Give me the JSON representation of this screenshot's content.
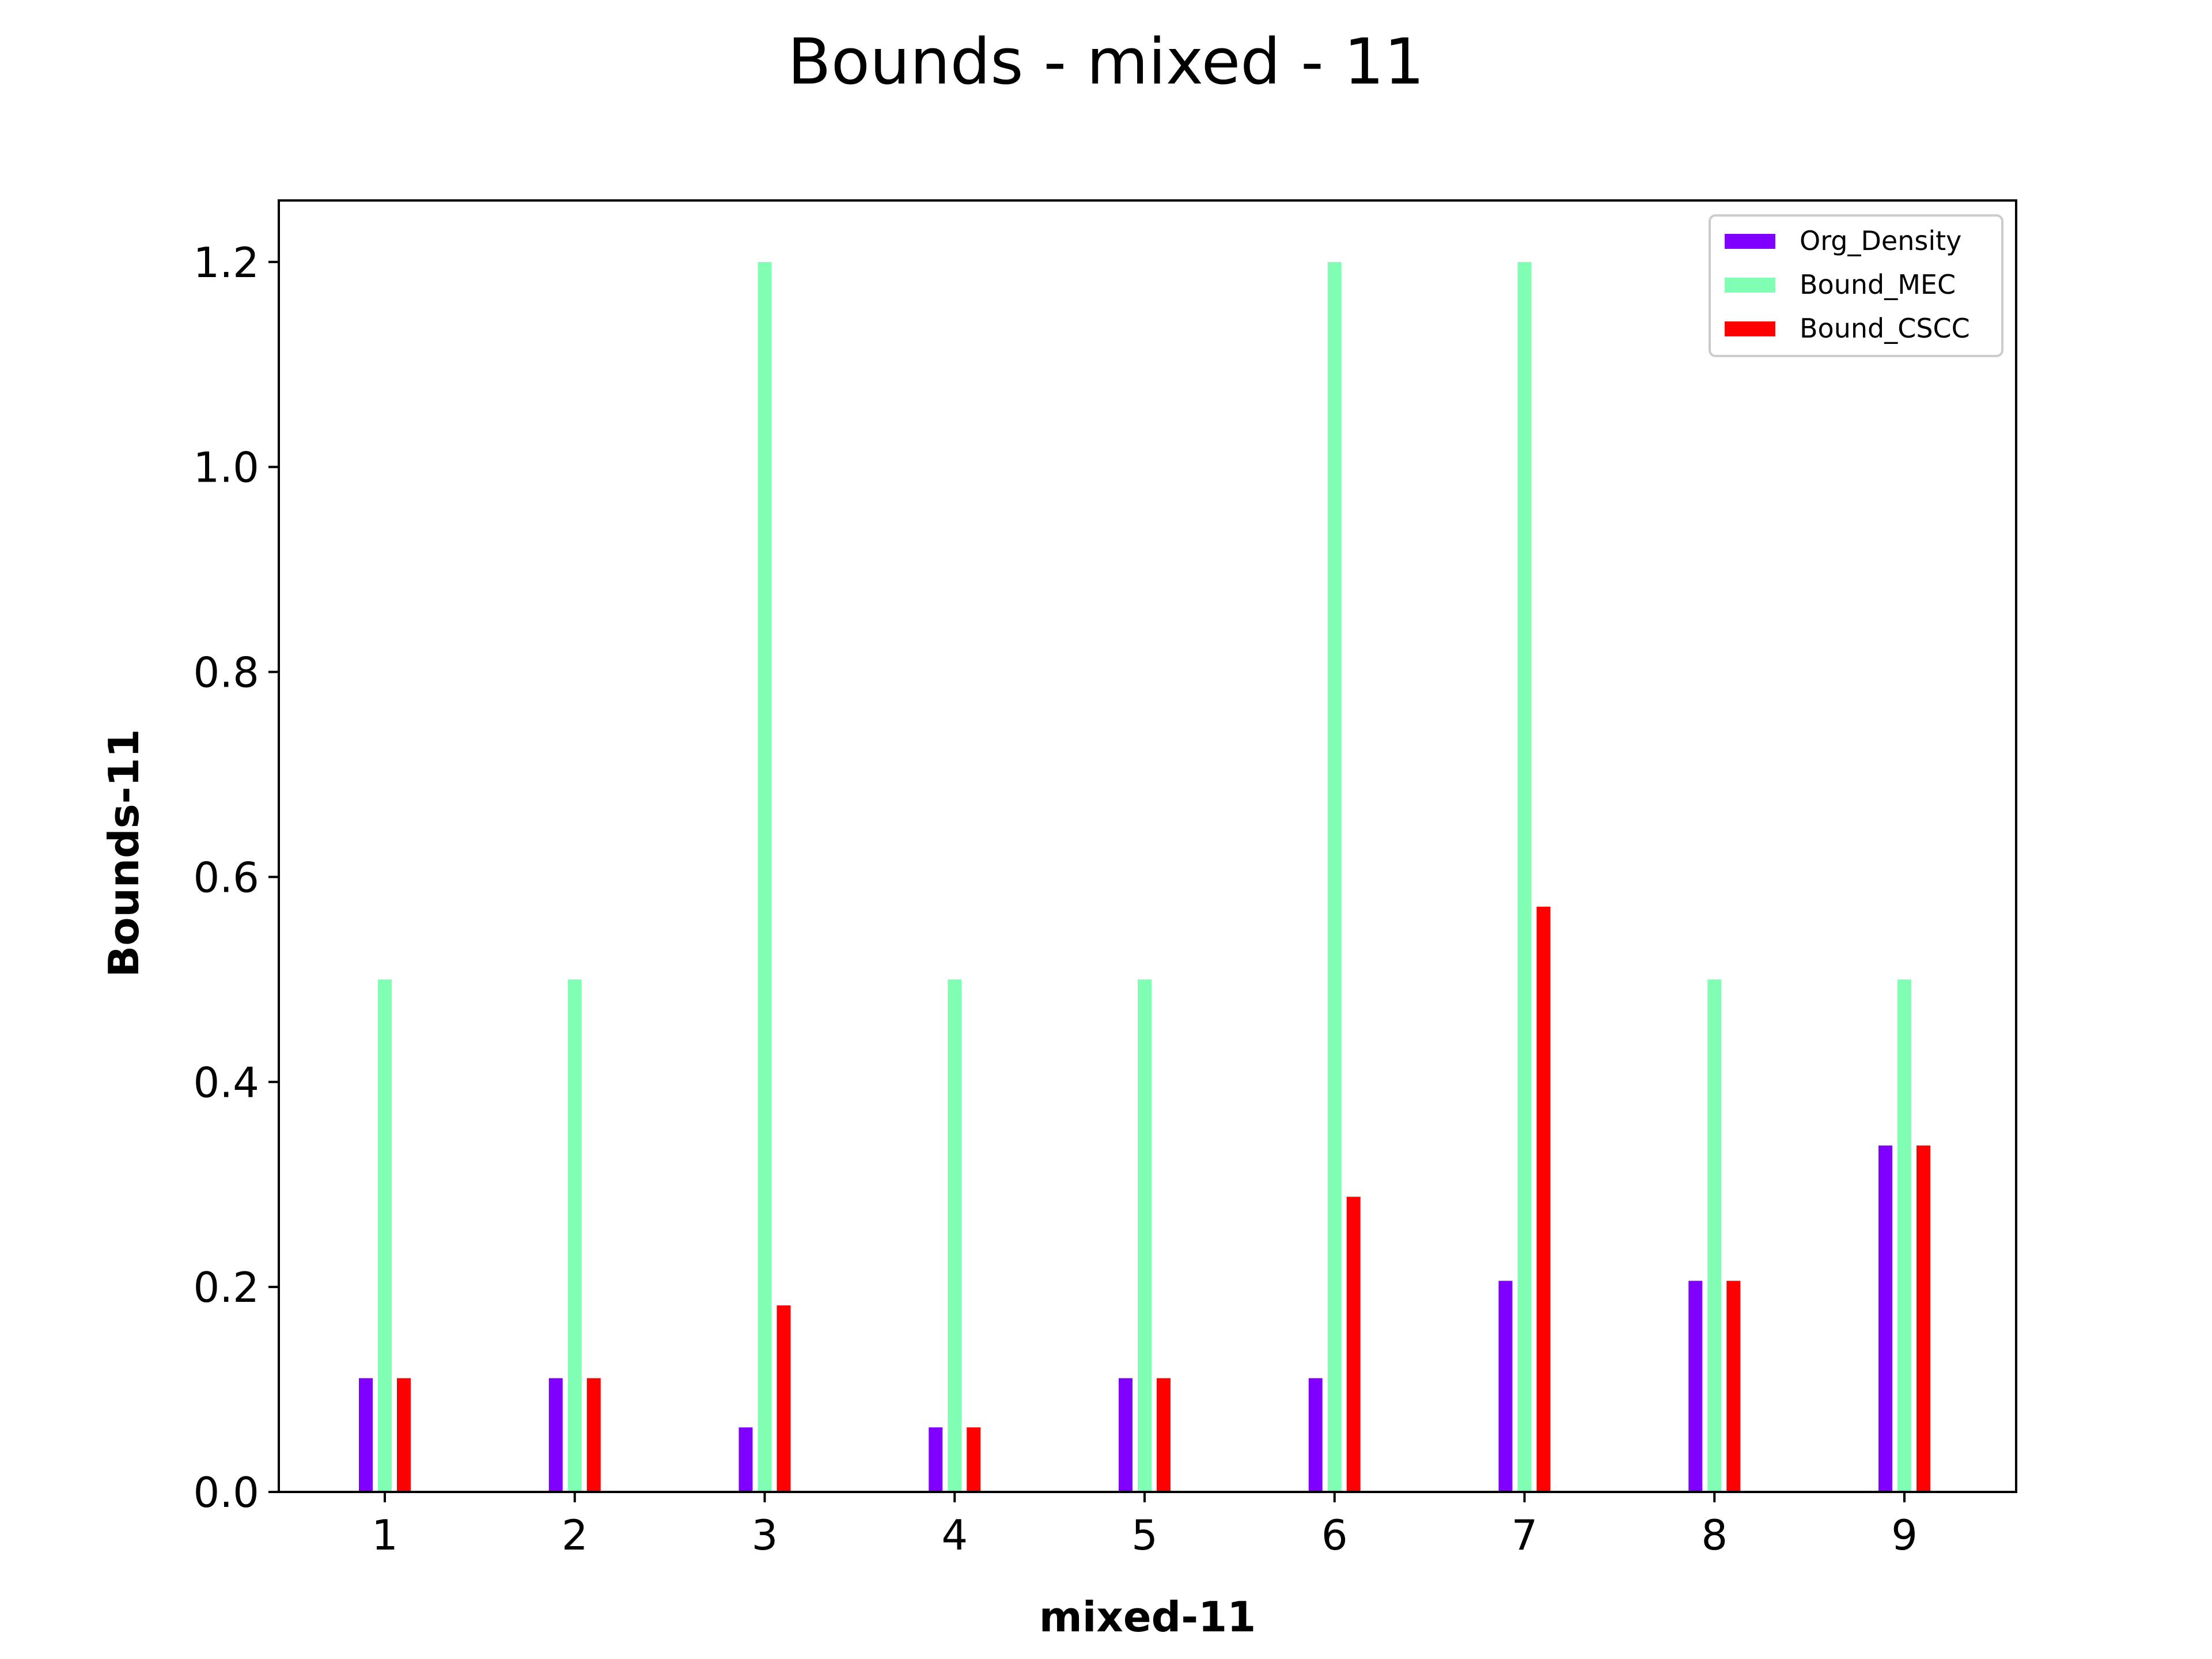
{
  "chart_data": {
    "type": "bar",
    "title": "Bounds - mixed - 11",
    "xlabel": "mixed-11",
    "ylabel": "Bounds-11",
    "categories": [
      "1",
      "2",
      "3",
      "4",
      "5",
      "6",
      "7",
      "8",
      "9"
    ],
    "ylim": [
      0,
      1.26
    ],
    "yticks": [
      "0.0",
      "0.2",
      "0.4",
      "0.6",
      "0.8",
      "1.0",
      "1.2"
    ],
    "ytick_values": [
      0,
      0.2,
      0.4,
      0.6,
      0.8,
      1.0,
      1.2
    ],
    "grid": false,
    "legend_position": "top-right",
    "series": [
      {
        "name": "Org_Density",
        "color": "#8000ff",
        "values": [
          0.111,
          0.111,
          0.063,
          0.063,
          0.111,
          0.111,
          0.206,
          0.206,
          0.338
        ]
      },
      {
        "name": "Bound_MEC",
        "color": "#80ffb4",
        "values": [
          0.5,
          0.5,
          1.2,
          0.5,
          0.5,
          1.2,
          1.2,
          0.5,
          0.5
        ]
      },
      {
        "name": "Bound_CSCC",
        "color": "#ff0000",
        "values": [
          0.111,
          0.111,
          0.182,
          0.063,
          0.111,
          0.288,
          0.571,
          0.206,
          0.338
        ]
      }
    ]
  }
}
